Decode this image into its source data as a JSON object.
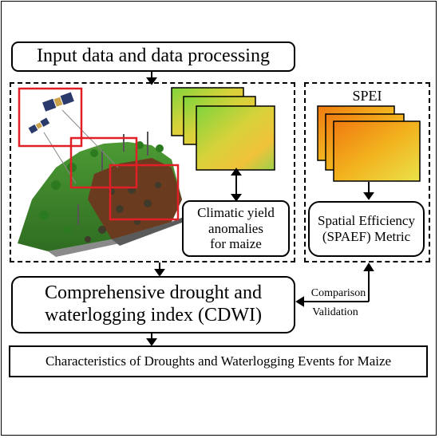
{
  "boxes": {
    "input": "Input data and data processing",
    "yield_line1": "Climatic yield",
    "yield_line2": "anomalies",
    "yield_line3": "for maize",
    "spei": "SPEI",
    "spaef_line1": "Spatial Efficiency",
    "spaef_line2": "(SPAEF) Metric",
    "cdwi_line1": "Comprehensive drought and",
    "cdwi_line2": "waterlogging index (CDWI)",
    "characteristics": "Characteristics of Droughts and Waterlogging Events for Maize"
  },
  "edge_labels": {
    "comparison": "Comparison",
    "validation": "Validation"
  },
  "colors": {
    "highlight_red": "#e01f26",
    "hill_green": "#3f8a2a",
    "soil_brown": "#6b3b1f",
    "map_yellow": "#e9d63a",
    "map_green": "#6fcf3c",
    "spei_orange": "#f08a1a"
  },
  "icons": [
    "satellite-icon",
    "weather-station-icon",
    "tree-icon"
  ]
}
